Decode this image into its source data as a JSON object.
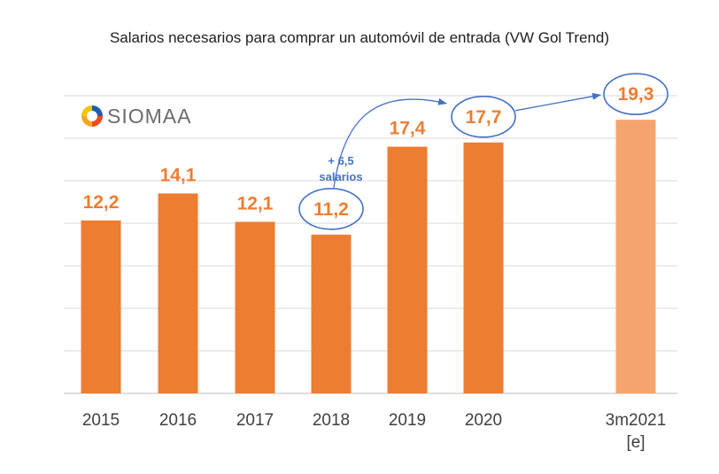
{
  "chart_data": {
    "type": "bar",
    "title": "Salarios necesarios para comprar un automóvil de entrada (VW Gol Trend)",
    "categories": [
      "2015",
      "2016",
      "2017",
      "2018",
      "2019",
      "2020",
      "3m2021"
    ],
    "category_sublabels": [
      "",
      "",
      "",
      "",
      "",
      "",
      "[e]"
    ],
    "values": [
      12.2,
      14.1,
      12.1,
      11.2,
      17.4,
      17.7,
      19.3
    ],
    "value_labels": [
      "12,2",
      "14,1",
      "12,1",
      "11,2",
      "17,4",
      "17,7",
      "19,3"
    ],
    "estimated": [
      false,
      false,
      false,
      false,
      false,
      false,
      true
    ],
    "highlighted": [
      "2018",
      "2020",
      "3m2021"
    ],
    "ylim": [
      0,
      21
    ],
    "gridlines": true,
    "xlabel": "",
    "ylabel": "",
    "annotation": {
      "line1": "+ 6,5",
      "line2": "salarios",
      "from": "2018",
      "to": "2020"
    },
    "colors": {
      "bar": "#ED7D31",
      "bar_estimated": "#F4A46C",
      "label": "#ED7D31",
      "axis_text": "#404040",
      "grid": "#D9D9D9",
      "highlight": "#4472C4",
      "annotation_text": "#4472C4"
    }
  },
  "logo": {
    "text": "SIOMAA"
  }
}
